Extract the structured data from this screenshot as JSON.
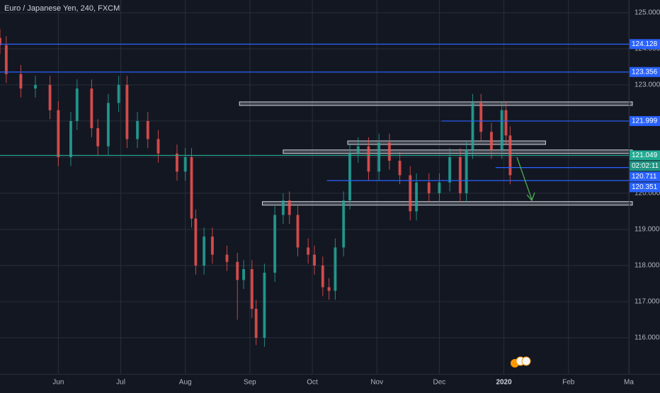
{
  "chart_data": {
    "type": "candlestick",
    "title": "Euro / Japanese Yen, 240, FXCM",
    "x": [
      -28,
      -25,
      -18,
      -11,
      -4,
      0,
      6,
      9,
      16,
      19,
      24,
      29,
      33,
      38,
      43,
      48,
      57,
      61,
      64,
      66,
      70,
      74,
      81,
      86,
      89,
      93,
      95,
      99,
      104,
      108,
      111,
      115,
      120,
      123,
      127,
      130,
      133,
      137,
      140,
      144,
      149,
      154,
      159,
      164,
      169,
      172,
      178,
      183,
      188,
      193,
      196,
      199,
      203,
      208,
      213,
      215,
      217
    ],
    "open": [
      124.3,
      124.1,
      123.3,
      122.9,
      123.0,
      122.3,
      121.0,
      122.0,
      122.9,
      121.8,
      121.3,
      122.5,
      123.0,
      121.5,
      122.0,
      121.5,
      121.1,
      120.6,
      121.0,
      119.3,
      118.0,
      118.8,
      118.3,
      118.1,
      117.6,
      117.9,
      116.8,
      116.0,
      117.8,
      119.4,
      119.8,
      119.4,
      118.5,
      118.3,
      118.0,
      117.4,
      117.3,
      118.5,
      119.8,
      121.1,
      121.3,
      120.6,
      121.4,
      120.9,
      120.5,
      119.5,
      120.3,
      120.0,
      120.3,
      121.0,
      120.0,
      121.2,
      122.5,
      121.7,
      121.2,
      122.3,
      121.6
    ],
    "high": [
      124.55,
      124.35,
      123.55,
      123.25,
      123.25,
      122.55,
      122.25,
      123.15,
      123.15,
      122.05,
      122.75,
      123.25,
      123.25,
      122.25,
      122.25,
      121.75,
      121.35,
      121.25,
      121.25,
      119.55,
      119.05,
      119.05,
      118.55,
      118.35,
      118.15,
      118.15,
      117.05,
      118.05,
      119.65,
      120.0,
      120.05,
      119.65,
      118.75,
      118.55,
      118.25,
      117.65,
      118.75,
      120.05,
      121.35,
      121.55,
      121.55,
      121.65,
      121.65,
      121.15,
      120.75,
      120.55,
      120.55,
      120.55,
      121.25,
      121.25,
      121.45,
      122.75,
      122.75,
      121.95,
      122.55,
      122.55,
      121.85
    ],
    "low": [
      123.85,
      123.05,
      122.65,
      122.65,
      122.05,
      120.75,
      120.75,
      121.75,
      121.55,
      121.05,
      121.05,
      122.25,
      121.25,
      121.25,
      121.25,
      120.85,
      120.35,
      120.35,
      119.05,
      117.75,
      117.75,
      118.05,
      117.85,
      116.5,
      117.35,
      116.55,
      115.8,
      115.75,
      117.55,
      119.15,
      119.15,
      118.25,
      118.05,
      117.75,
      117.15,
      117.05,
      117.05,
      118.25,
      119.55,
      120.85,
      120.35,
      120.35,
      120.65,
      120.25,
      119.25,
      119.25,
      119.75,
      119.75,
      120.05,
      119.75,
      119.75,
      120.95,
      121.45,
      120.95,
      120.95,
      121.35,
      120.25
    ],
    "close": [
      124.1,
      123.3,
      122.9,
      123.0,
      122.3,
      121.0,
      122.0,
      122.9,
      121.8,
      121.3,
      122.5,
      123.0,
      121.5,
      122.0,
      121.5,
      121.1,
      120.6,
      121.0,
      119.3,
      118.0,
      118.8,
      118.3,
      118.1,
      117.6,
      117.9,
      116.8,
      116.0,
      117.8,
      119.4,
      119.8,
      119.4,
      118.5,
      118.3,
      118.0,
      117.4,
      117.3,
      118.5,
      119.8,
      121.1,
      121.3,
      120.6,
      121.4,
      120.9,
      120.5,
      119.5,
      120.3,
      120.0,
      120.3,
      121.0,
      120.0,
      121.2,
      122.5,
      121.7,
      121.2,
      122.3,
      121.6,
      120.5
    ],
    "up_color": "#26a69a",
    "down_color": "#ef5350",
    "xlim": [
      -28,
      274
    ],
    "xticks": [
      {
        "value": 0,
        "label": "Jun"
      },
      {
        "value": 30,
        "label": "Jul"
      },
      {
        "value": 61,
        "label": "Aug"
      },
      {
        "value": 92,
        "label": "Sep"
      },
      {
        "value": 122,
        "label": "Oct"
      },
      {
        "value": 153,
        "label": "Nov"
      },
      {
        "value": 183,
        "label": "Dec"
      },
      {
        "value": 214,
        "label": "2020"
      },
      {
        "value": 245,
        "label": "Feb"
      },
      {
        "value": 274,
        "label": "Ma"
      }
    ],
    "ylim": [
      115,
      125.35
    ],
    "yticks": [
      {
        "value": 116,
        "label": "116.000"
      },
      {
        "value": 117,
        "label": "117.000"
      },
      {
        "value": 118,
        "label": "118.000"
      },
      {
        "value": 119,
        "label": "119.000"
      },
      {
        "value": 120,
        "label": "120.000"
      },
      {
        "value": 121,
        "label": "121.000"
      },
      {
        "value": 122,
        "label": "122.000"
      },
      {
        "value": 123,
        "label": "123.000"
      },
      {
        "value": 124,
        "label": "124.000"
      },
      {
        "value": 125,
        "label": "125.000"
      }
    ],
    "grid": true,
    "levels": [
      {
        "price": 124.128,
        "color": "#2962ff"
      },
      {
        "price": 123.356,
        "color": "#2962ff"
      },
      {
        "price": 121.999,
        "color": "#2962ff",
        "start": 184
      },
      {
        "price": 121.049,
        "color": "#22ab94"
      },
      {
        "price": 120.711,
        "color": "#2962ff",
        "start": 210
      },
      {
        "price": 120.351,
        "color": "#2962ff",
        "start": 129
      }
    ],
    "countdown": "02:02:11",
    "zones": [
      {
        "price": 122.48,
        "start": 87
      },
      {
        "price": 121.4,
        "start": 139,
        "end": 234
      },
      {
        "price": 121.15,
        "start": 108
      },
      {
        "price": 119.72,
        "start": 98
      }
    ]
  }
}
